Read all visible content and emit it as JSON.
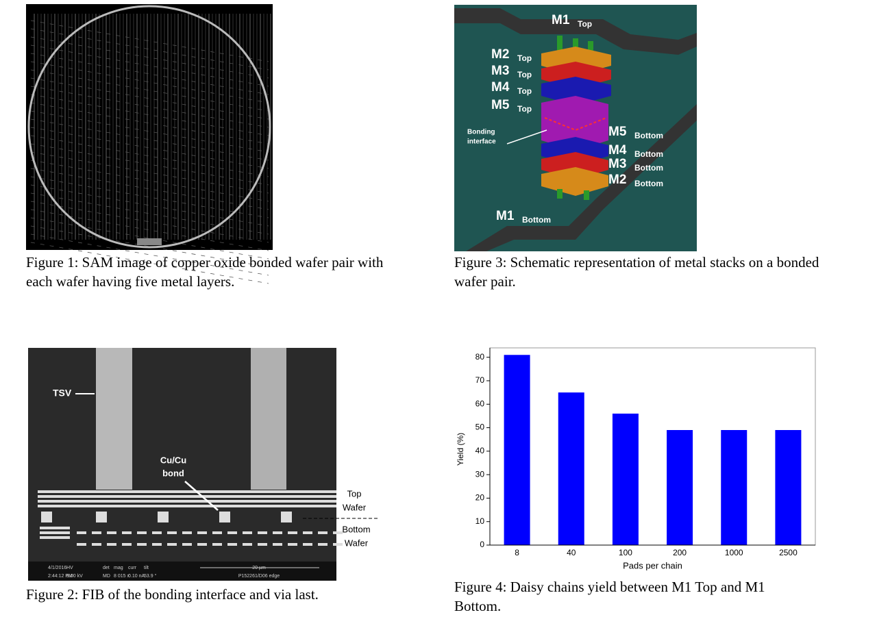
{
  "figure_1": {
    "caption": "Figure 1: SAM image of copper oxide bonded wafer pair with each wafer having five metal layers."
  },
  "figure_2": {
    "caption": "Figure 2: FIB of the bonding interface and via last.",
    "tsv_label": "TSV",
    "bond_label": [
      "Cu/Cu",
      "bond"
    ],
    "top_wafer": [
      "Top",
      "Wafer"
    ],
    "bottom_wafer": [
      "Bottom",
      "Wafer"
    ],
    "info_bar": [
      "4/1/2016",
      "2:44:12 PM",
      "HV",
      "5.00 kV",
      "det",
      "MD",
      "mag",
      "8 015 x",
      "curr",
      "0.10 nA",
      "tilt",
      "53.9 °",
      "20 µm",
      "P152261/D06 edge"
    ]
  },
  "figure_3": {
    "caption": "Figure 3: Schematic representation of metal stacks on a bonded wafer pair.",
    "layers": [
      {
        "main": "M1",
        "sub": "Top"
      },
      {
        "main": "M2",
        "sub": "Top"
      },
      {
        "main": "M3",
        "sub": "Top"
      },
      {
        "main": "M4",
        "sub": "Top"
      },
      {
        "main": "M5",
        "sub": "Top"
      },
      {
        "main": "M5",
        "sub": "Bottom"
      },
      {
        "main": "M4",
        "sub": "Bottom"
      },
      {
        "main": "M3",
        "sub": "Bottom"
      },
      {
        "main": "M2",
        "sub": "Bottom"
      },
      {
        "main": "M1",
        "sub": "Bottom"
      }
    ],
    "bonding_label": [
      "Bonding",
      "interface"
    ]
  },
  "figure_4": {
    "caption": "Figure 4: Daisy chains yield between M1 Top and M1 Bottom."
  },
  "chart_data": {
    "type": "bar",
    "xlabel": "Pads per chain",
    "ylabel": "Yield (%)",
    "categories": [
      "8",
      "40",
      "100",
      "200",
      "1000",
      "2500"
    ],
    "values": [
      81,
      65,
      56,
      49,
      49,
      49
    ],
    "color": "#0000ff",
    "ylim": [
      0,
      84
    ],
    "yticks": [
      0,
      10,
      20,
      30,
      40,
      50,
      60,
      70,
      80
    ]
  }
}
